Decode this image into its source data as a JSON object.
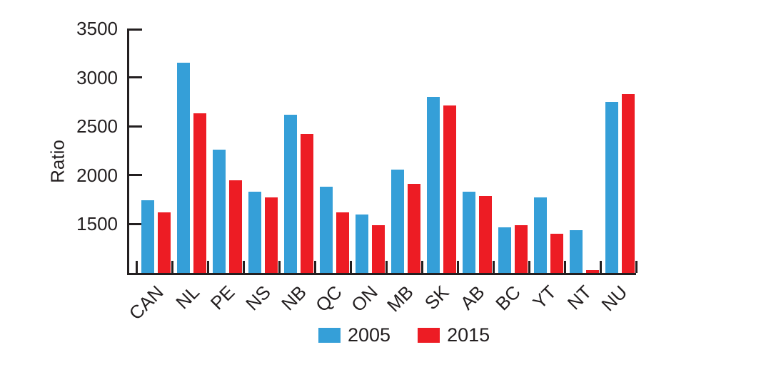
{
  "chart_data": {
    "type": "bar",
    "title": "",
    "xlabel": "",
    "ylabel": "Ratio",
    "categories": [
      "CAN",
      "NL",
      "PE",
      "NS",
      "NB",
      "QC",
      "ON",
      "MB",
      "SK",
      "AB",
      "BC",
      "YT",
      "NT",
      "NU"
    ],
    "series": [
      {
        "name": "2005",
        "color": "#359fd8",
        "values": [
          1740,
          3150,
          2260,
          1830,
          2620,
          1880,
          1600,
          2060,
          2800,
          1830,
          1470,
          1770,
          1440,
          2750
        ]
      },
      {
        "name": "2015",
        "color": "#ed1c24",
        "values": [
          1620,
          2630,
          1950,
          1770,
          2420,
          1620,
          1490,
          1910,
          2710,
          1790,
          1490,
          1400,
          1030,
          2830
        ]
      }
    ],
    "ylim": [
      1000,
      3500
    ],
    "yticks": [
      1500,
      2000,
      2500,
      3000,
      3500
    ],
    "grid": false,
    "legend_position": "bottom",
    "axis_color": "#231f20"
  }
}
